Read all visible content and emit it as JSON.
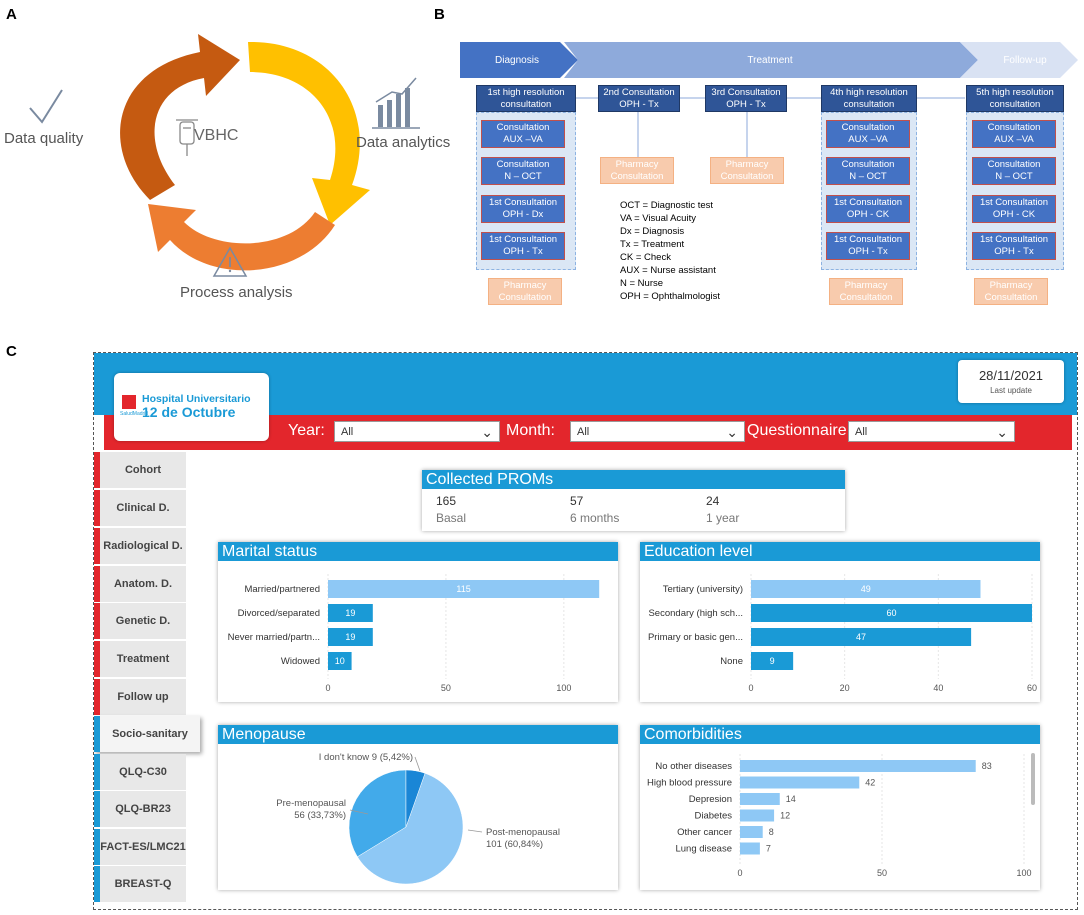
{
  "panels": {
    "a": "A",
    "b": "B",
    "c": "C"
  },
  "panel_a": {
    "center": "VBHC",
    "data_quality": "Data quality",
    "data_analytics": "Data analytics",
    "process_analysis": "Process analysis",
    "colors": {
      "brown": "#c55a11",
      "yellow": "#ffc000",
      "orange": "#ed7d31"
    }
  },
  "panel_b": {
    "phases": [
      "Diagnosis",
      "Treatment",
      "Follow-up"
    ],
    "consultations": [
      "1st high resolution consultation",
      "2nd Consultation OPH - Tx",
      "3rd Consultation OPH - Tx",
      "4th high resolution consultation",
      "5th high resolution consultation"
    ],
    "group1": [
      [
        "Consultation",
        "AUX –VA"
      ],
      [
        "Consultation",
        "N – OCT"
      ],
      [
        "1st Consultation",
        "OPH - Dx"
      ],
      [
        "1st Consultation",
        "OPH - Tx"
      ]
    ],
    "group2": [
      [
        "Consultation",
        "AUX –VA"
      ],
      [
        "Consultation",
        "N – OCT"
      ],
      [
        "1st Consultation",
        "OPH - CK"
      ],
      [
        "1st Consultation",
        "OPH - Tx"
      ]
    ],
    "pharmacy": [
      "Pharmacy",
      "Consultation"
    ],
    "legend": [
      "OCT = Diagnostic test",
      "VA = Visual Acuity",
      "Dx = Diagnosis",
      "Tx = Treatment",
      "CK = Check",
      "AUX = Nurse assistant",
      "N = Nurse",
      "OPH = Ophthalmologist"
    ]
  },
  "dashboard": {
    "date": "28/11/2021",
    "last_update": "Last update",
    "logo_line1": "Hospital Universitario",
    "logo_line2": "12 de Octubre",
    "logo_small": "SaludMadrid",
    "filters": [
      {
        "label": "Year:",
        "value": "All"
      },
      {
        "label": "Month:",
        "value": "All"
      },
      {
        "label": "Questionnaire:",
        "value": "All"
      }
    ],
    "nav": [
      {
        "label": "Cohort",
        "color": "red"
      },
      {
        "label": "Clinical D.",
        "color": "red"
      },
      {
        "label": "Radiological D.",
        "color": "red"
      },
      {
        "label": "Anatom. D.",
        "color": "red"
      },
      {
        "label": "Genetic D.",
        "color": "red"
      },
      {
        "label": "Treatment",
        "color": "red"
      },
      {
        "label": "Follow up",
        "color": "red"
      },
      {
        "label": "Socio-sanitary",
        "color": "blue"
      },
      {
        "label": "QLQ-C30",
        "color": "blue"
      },
      {
        "label": "QLQ-BR23",
        "color": "blue"
      },
      {
        "label": "FACT-ES/LMC21",
        "color": "blue"
      },
      {
        "label": "BREAST-Q",
        "color": "blue"
      }
    ],
    "proms": {
      "title": "Collected PROMs",
      "items": [
        {
          "value": "165",
          "label": "Basal"
        },
        {
          "value": "57",
          "label": "6 months"
        },
        {
          "value": "24",
          "label": "1 year"
        }
      ]
    }
  },
  "chart_data": [
    {
      "type": "bar",
      "title": "Marital status",
      "categories": [
        "Married/partnered",
        "Divorced/separated",
        "Never married/partn...",
        "Widowed"
      ],
      "values": [
        115,
        19,
        19,
        10
      ],
      "xlim": [
        0,
        120
      ],
      "ticks": [
        0,
        50,
        100
      ],
      "colors": [
        "#8ec8f5",
        "#1a9ad6",
        "#1a9ad6",
        "#1a9ad6"
      ]
    },
    {
      "type": "bar",
      "title": "Education level",
      "categories": [
        "Tertiary (university)",
        "Secondary (high sch...",
        "Primary or basic gen...",
        "None"
      ],
      "values": [
        49,
        60,
        47,
        9
      ],
      "xlim": [
        0,
        60
      ],
      "ticks": [
        0,
        20,
        40,
        60
      ],
      "colors": [
        "#8ec8f5",
        "#1a9ad6",
        "#1a9ad6",
        "#1a9ad6"
      ]
    },
    {
      "type": "pie",
      "title": "Menopause",
      "slices": [
        {
          "label": "Post-menopausal",
          "value": 101,
          "pct": "101 (60,84%)",
          "color": "#8ec8f5"
        },
        {
          "label": "Pre-menopausal",
          "value": 56,
          "pct": "56 (33,73%)",
          "color": "#42aaea"
        },
        {
          "label": "I don't know",
          "value": 9,
          "pct": "I don't know 9 (5,42%)",
          "color": "#1a86d6"
        }
      ]
    },
    {
      "type": "bar",
      "title": "Comorbidities",
      "categories": [
        "No other diseases",
        "High blood pressure",
        "Depresion",
        "Diabetes",
        "Other cancer",
        "Lung disease"
      ],
      "values": [
        83,
        42,
        14,
        12,
        8,
        7
      ],
      "xlim": [
        0,
        100
      ],
      "ticks": [
        0,
        50,
        100
      ],
      "colors": [
        "#8ec8f5",
        "#8ec8f5",
        "#8ec8f5",
        "#8ec8f5",
        "#8ec8f5",
        "#8ec8f5"
      ]
    }
  ]
}
